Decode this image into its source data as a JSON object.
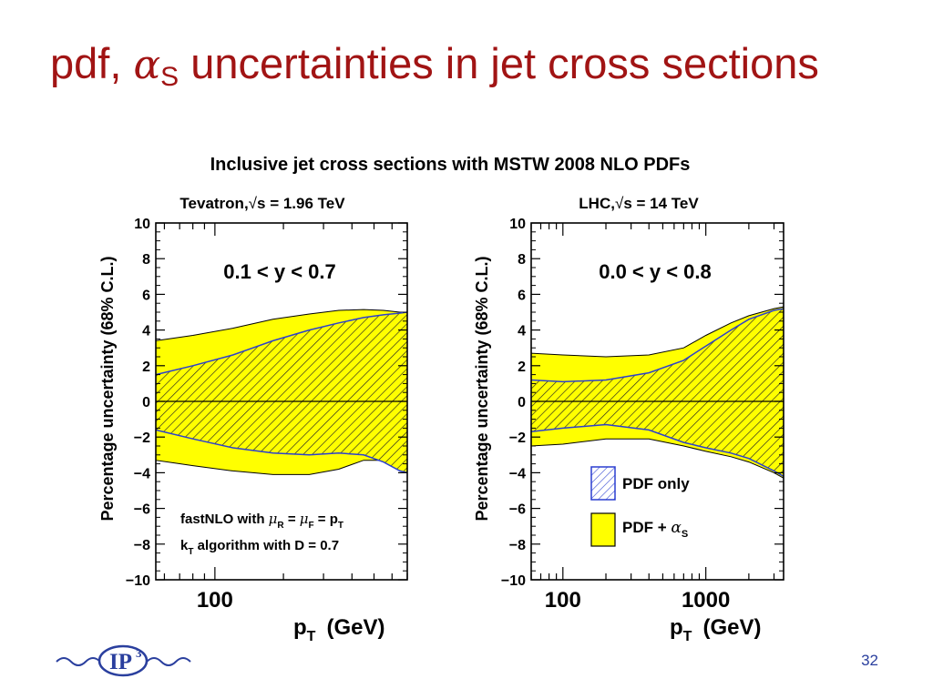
{
  "slide": {
    "title_pre": "pdf, ",
    "title_alpha": "α",
    "title_sub": "S",
    "title_post": " uncertainties in jet cross sections",
    "page_number": "32",
    "logo_text": "IP",
    "logo_sup": "3"
  },
  "colors": {
    "title": "#a11414",
    "band_total": "#ffff00",
    "band_pdf_hatch": "#2b3fd0",
    "page_number": "#2a3f9e"
  },
  "figure": {
    "title": "Inclusive jet cross sections with MSTW 2008 NLO PDFs",
    "ylabel": "Percentage uncertainty (68% C.L.)",
    "xlabel_main": "p",
    "xlabel_sub": "T",
    "xlabel_unit": "(GeV)",
    "legend": [
      {
        "key": "pdf",
        "label": "PDF only"
      },
      {
        "key": "total",
        "label_pre": "PDF + ",
        "label_alpha": "α",
        "label_sub": "S"
      }
    ]
  },
  "chart_data": [
    {
      "type": "area",
      "header_pre": "Tevatron,",
      "header_sqrt": "√",
      "header_post": "s = 1.96 TeV",
      "region": "0.1 < y < 0.7",
      "annotation_line1": {
        "pre": "fastNLO with ",
        "mu": "μ",
        "subR": "R",
        "eq1": " = ",
        "mu2": "μ",
        "subF": "F",
        "eq2": " = p",
        "subT": "T"
      },
      "annotation_line2": {
        "pre": "k",
        "subT": "T",
        "post": " algorithm with D = 0.7"
      },
      "xscale": "log",
      "xlim": [
        55,
        700
      ],
      "ylim": [
        -10,
        10
      ],
      "yticks": [
        -10,
        -8,
        -6,
        -4,
        -2,
        0,
        2,
        4,
        6,
        8,
        10
      ],
      "xtick_labels": [
        {
          "value": 100,
          "label": "100"
        }
      ],
      "series": [
        {
          "name": "PDF only",
          "x": [
            55,
            80,
            120,
            180,
            260,
            350,
            450,
            550,
            650,
            700
          ],
          "upper": [
            1.5,
            2.0,
            2.6,
            3.4,
            4.0,
            4.4,
            4.7,
            4.85,
            4.95,
            5.0
          ],
          "lower": [
            -1.6,
            -2.1,
            -2.6,
            -2.9,
            -3.0,
            -2.9,
            -3.0,
            -3.4,
            -3.9,
            -4.0
          ]
        },
        {
          "name": "PDF + αS",
          "x": [
            55,
            80,
            120,
            180,
            260,
            350,
            450,
            550,
            650,
            700
          ],
          "upper": [
            3.4,
            3.7,
            4.1,
            4.6,
            4.9,
            5.1,
            5.15,
            5.1,
            5.0,
            5.0
          ],
          "lower": [
            -3.3,
            -3.6,
            -3.9,
            -4.1,
            -4.1,
            -3.8,
            -3.3,
            -3.3,
            -3.8,
            -4.0
          ]
        }
      ]
    },
    {
      "type": "area",
      "header_pre": "LHC,",
      "header_sqrt": "√",
      "header_post": "s = 14 TeV",
      "region": "0.0 < y < 0.8",
      "xscale": "log",
      "xlim": [
        60,
        3500
      ],
      "ylim": [
        -10,
        10
      ],
      "yticks": [
        -10,
        -8,
        -6,
        -4,
        -2,
        0,
        2,
        4,
        6,
        8,
        10
      ],
      "xtick_labels": [
        {
          "value": 100,
          "label": "100"
        },
        {
          "value": 1000,
          "label": "1000"
        }
      ],
      "series": [
        {
          "name": "PDF only",
          "x": [
            60,
            100,
            200,
            400,
            700,
            1000,
            1500,
            2000,
            3000,
            3500
          ],
          "upper": [
            1.2,
            1.1,
            1.2,
            1.6,
            2.3,
            3.1,
            4.0,
            4.6,
            5.1,
            5.2
          ],
          "lower": [
            -1.7,
            -1.5,
            -1.3,
            -1.6,
            -2.3,
            -2.6,
            -2.9,
            -3.2,
            -3.9,
            -4.2
          ]
        },
        {
          "name": "PDF + αS",
          "x": [
            60,
            100,
            200,
            400,
            700,
            1000,
            1500,
            2000,
            3000,
            3500
          ],
          "upper": [
            2.7,
            2.6,
            2.5,
            2.6,
            3.0,
            3.7,
            4.4,
            4.8,
            5.2,
            5.3
          ],
          "lower": [
            -2.5,
            -2.4,
            -2.1,
            -2.1,
            -2.5,
            -2.8,
            -3.1,
            -3.4,
            -4.0,
            -4.3
          ]
        }
      ]
    }
  ]
}
